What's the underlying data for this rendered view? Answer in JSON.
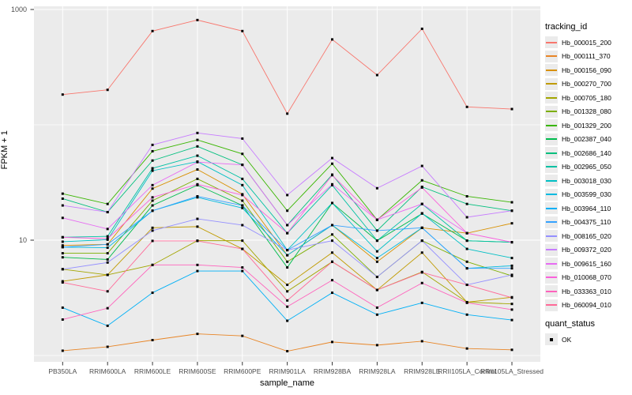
{
  "y_axis": {
    "title": "FPKM + 1",
    "breaks": [
      {
        "label": "1000",
        "value": 1000
      },
      {
        "label": "10",
        "value": 10
      }
    ],
    "minor_breaks": [
      1,
      100
    ]
  },
  "x_axis": {
    "title": "sample_name"
  },
  "legend": {
    "tracking_title": "tracking_id",
    "quant_title": "quant_status",
    "quant_value": "OK"
  },
  "colors": {
    "panel_background": "#ebebeb",
    "gridline": "#ffffff",
    "tick_text": "#4d4d4d",
    "point": "#000000"
  },
  "chart_data": {
    "type": "line",
    "title": "",
    "xlabel": "sample_name",
    "ylabel": "FPKM + 1",
    "y_scale": "log10",
    "ylim": [
      0.73,
      1070
    ],
    "grid": true,
    "legend_position": "right",
    "point_shape": "filled-square",
    "categories": [
      "PB350LA",
      "RRIM600LA",
      "RRIM600LE",
      "RRIM600SE",
      "RRIM600PE",
      "RRIM901LA",
      "RRIM928BA",
      "RRIM928LA",
      "RRIM928LE",
      "RRII105LA_Control",
      "RRII105LA_Stressed"
    ],
    "series": [
      {
        "name": "Hb_000015_200",
        "color": "#F8766D",
        "values": [
          183,
          201,
          650,
          810,
          650,
          125,
          550,
          270,
          680,
          143,
          137
        ]
      },
      {
        "name": "Hb_000111_370",
        "color": "#E88526",
        "values": [
          1.1,
          1.19,
          1.36,
          1.54,
          1.48,
          1.09,
          1.31,
          1.23,
          1.33,
          1.15,
          1.12
        ]
      },
      {
        "name": "Hb_000156_090",
        "color": "#D89000",
        "values": [
          9.0,
          9.2,
          28,
          41,
          25,
          7.4,
          13.5,
          6.5,
          12.8,
          11.5,
          14.0
        ]
      },
      {
        "name": "Hb_000270_700",
        "color": "#C09B00",
        "values": [
          4.4,
          5.0,
          12.8,
          13.1,
          8.4,
          4.1,
          7.8,
          3.7,
          7.8,
          2.9,
          3.2
        ]
      },
      {
        "name": "Hb_000705_180",
        "color": "#A3A500",
        "values": [
          5.6,
          5.0,
          6.1,
          9.9,
          9.9,
          3.6,
          6.5,
          3.7,
          5.3,
          2.9,
          2.8
        ]
      },
      {
        "name": "Hb_001328_080",
        "color": "#7CAE00",
        "values": [
          7.7,
          7.7,
          22,
          34,
          22,
          6.5,
          11.2,
          4.8,
          9.9,
          6.5,
          4.9
        ]
      },
      {
        "name": "Hb_001329_200",
        "color": "#39B600",
        "values": [
          25.3,
          20.6,
          59,
          74,
          56,
          18.0,
          46,
          15.0,
          33,
          24,
          21.3
        ]
      },
      {
        "name": "Hb_002387_040",
        "color": "#00BB4E",
        "values": [
          7.1,
          6.8,
          20,
          30,
          20,
          5.8,
          21,
          9.9,
          17,
          9.9,
          9.6
        ]
      },
      {
        "name": "Hb_002686_140",
        "color": "#00BF7D",
        "values": [
          22.9,
          17.5,
          49,
          65,
          45,
          13.5,
          37,
          12.1,
          29,
          20.6,
          18.0
        ]
      },
      {
        "name": "Hb_002965_050",
        "color": "#00C1A3",
        "values": [
          10.6,
          10.8,
          42,
          54,
          34,
          11.5,
          30,
          9.9,
          20.6,
          9.9,
          9.6
        ]
      },
      {
        "name": "Hb_003018_030",
        "color": "#00BFC4",
        "values": [
          9.7,
          10.1,
          40,
          48,
          30,
          8.2,
          21,
          8.0,
          17.1,
          8.4,
          7.0
        ]
      },
      {
        "name": "Hb_003599_030",
        "color": "#00BAE0",
        "values": [
          8.7,
          8.6,
          18,
          23.5,
          19,
          7.4,
          13.5,
          7.0,
          12.8,
          5.7,
          6.0
        ]
      },
      {
        "name": "Hb_003964_110",
        "color": "#00B0F6",
        "values": [
          2.6,
          1.81,
          3.5,
          5.4,
          5.4,
          2.0,
          3.5,
          2.26,
          2.86,
          2.26,
          2.03
        ]
      },
      {
        "name": "Hb_004375_110",
        "color": "#35A2FF",
        "values": [
          8.7,
          9.2,
          18,
          24,
          20,
          8.2,
          13.5,
          12.1,
          12.8,
          5.7,
          5.7
        ]
      },
      {
        "name": "Hb_008165_020",
        "color": "#9590FF",
        "values": [
          5.6,
          6.4,
          12.1,
          15.3,
          13.5,
          8.2,
          9.9,
          4.8,
          9.9,
          4.1,
          5.0
        ]
      },
      {
        "name": "Hb_009372_020",
        "color": "#C77CFF",
        "values": [
          20.0,
          17.5,
          67,
          85,
          76,
          24.6,
          51.5,
          28.2,
          44,
          15.8,
          18.0
        ]
      },
      {
        "name": "Hb_009615_160",
        "color": "#E76BF3",
        "values": [
          15.6,
          12.5,
          30,
          47.5,
          45,
          13.5,
          30.5,
          15.0,
          20.6,
          11.5,
          9.6
        ]
      },
      {
        "name": "Hb_010068_070",
        "color": "#FA62DB",
        "values": [
          10.6,
          10.3,
          23.5,
          30.5,
          24.6,
          11.5,
          36.6,
          15.0,
          28.6,
          11.5,
          9.6
        ]
      },
      {
        "name": "Hb_033363_010",
        "color": "#FF62BC",
        "values": [
          2.05,
          2.57,
          6.1,
          6.1,
          5.8,
          2.65,
          4.5,
          2.6,
          4.25,
          2.86,
          2.5
        ]
      },
      {
        "name": "Hb_060094_010",
        "color": "#FF6A98",
        "values": [
          4.3,
          3.6,
          9.85,
          9.85,
          8.4,
          3.0,
          6.5,
          3.7,
          5.25,
          4.1,
          3.17
        ]
      }
    ]
  }
}
